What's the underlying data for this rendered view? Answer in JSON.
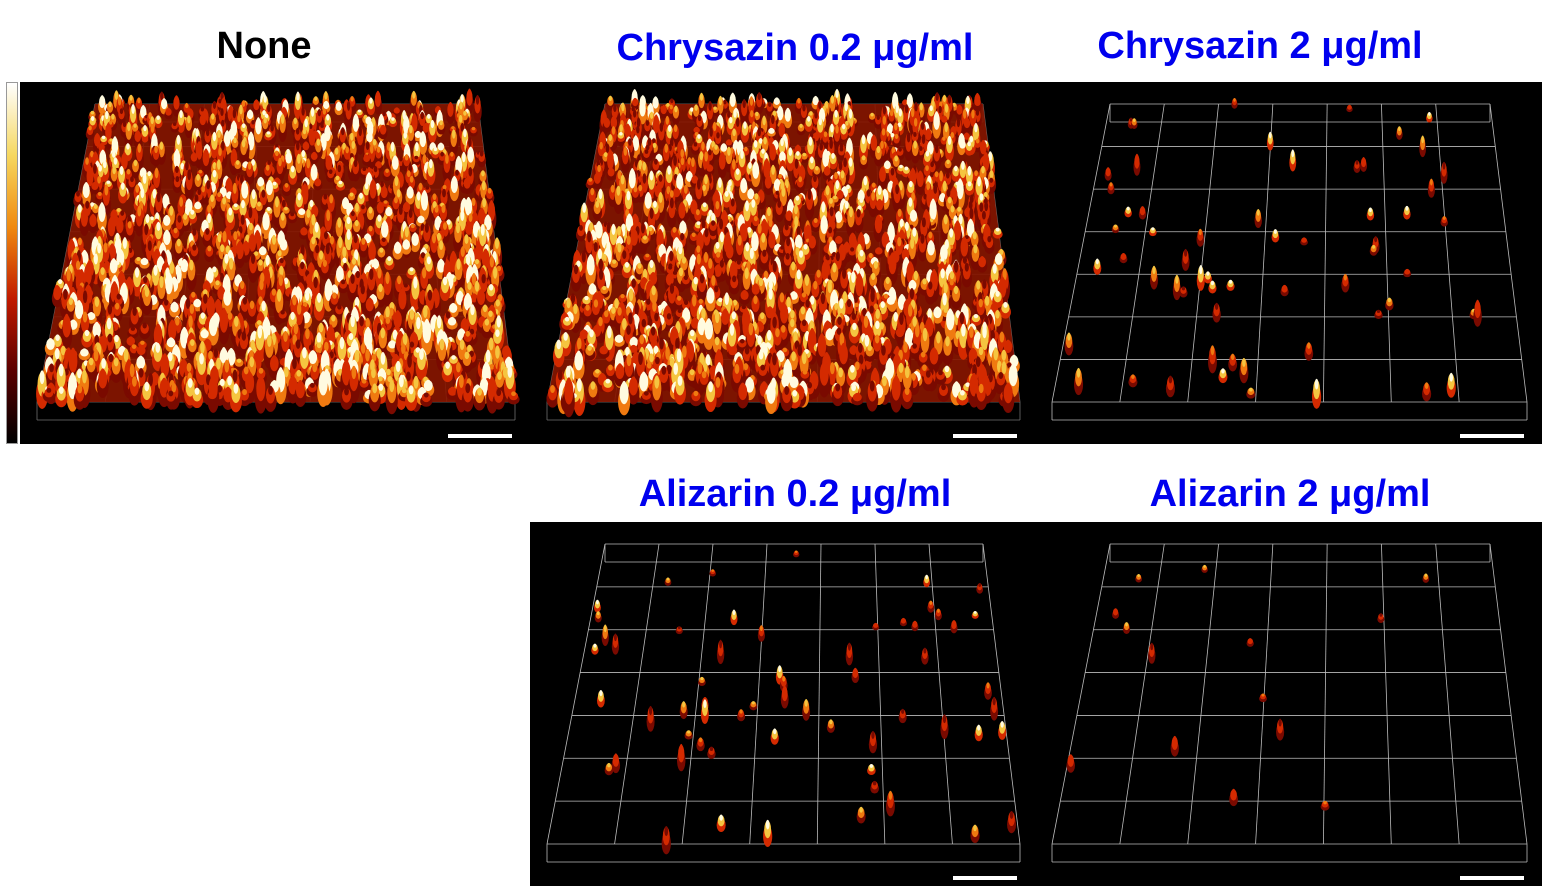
{
  "figure": {
    "panels": [
      {
        "id": "none",
        "label": "None",
        "label_color": "#000000",
        "density": "dense"
      },
      {
        "id": "chrysazin-02",
        "label": "Chrysazin 0.2 μg/ml",
        "label_color": "#0000ee",
        "density": "dense"
      },
      {
        "id": "chrysazin-2",
        "label": "Chrysazin 2 μg/ml",
        "label_color": "#0000ee",
        "density": "sparse"
      },
      {
        "id": "alizarin-02",
        "label": "Alizarin 0.2 μg/ml",
        "label_color": "#0000ee",
        "density": "sparse"
      },
      {
        "id": "alizarin-2",
        "label": "Alizarin 2 μg/ml",
        "label_color": "#0000ee",
        "density": "very-sparse"
      }
    ],
    "colormap": [
      "#1a0000",
      "#7a0a00",
      "#d42a00",
      "#f07a10",
      "#f5c540",
      "#fffbe0"
    ],
    "colorbar": "grayscale-to-yellow",
    "grid_color": "#dddddd",
    "scale_bar_color": "#ffffff"
  }
}
